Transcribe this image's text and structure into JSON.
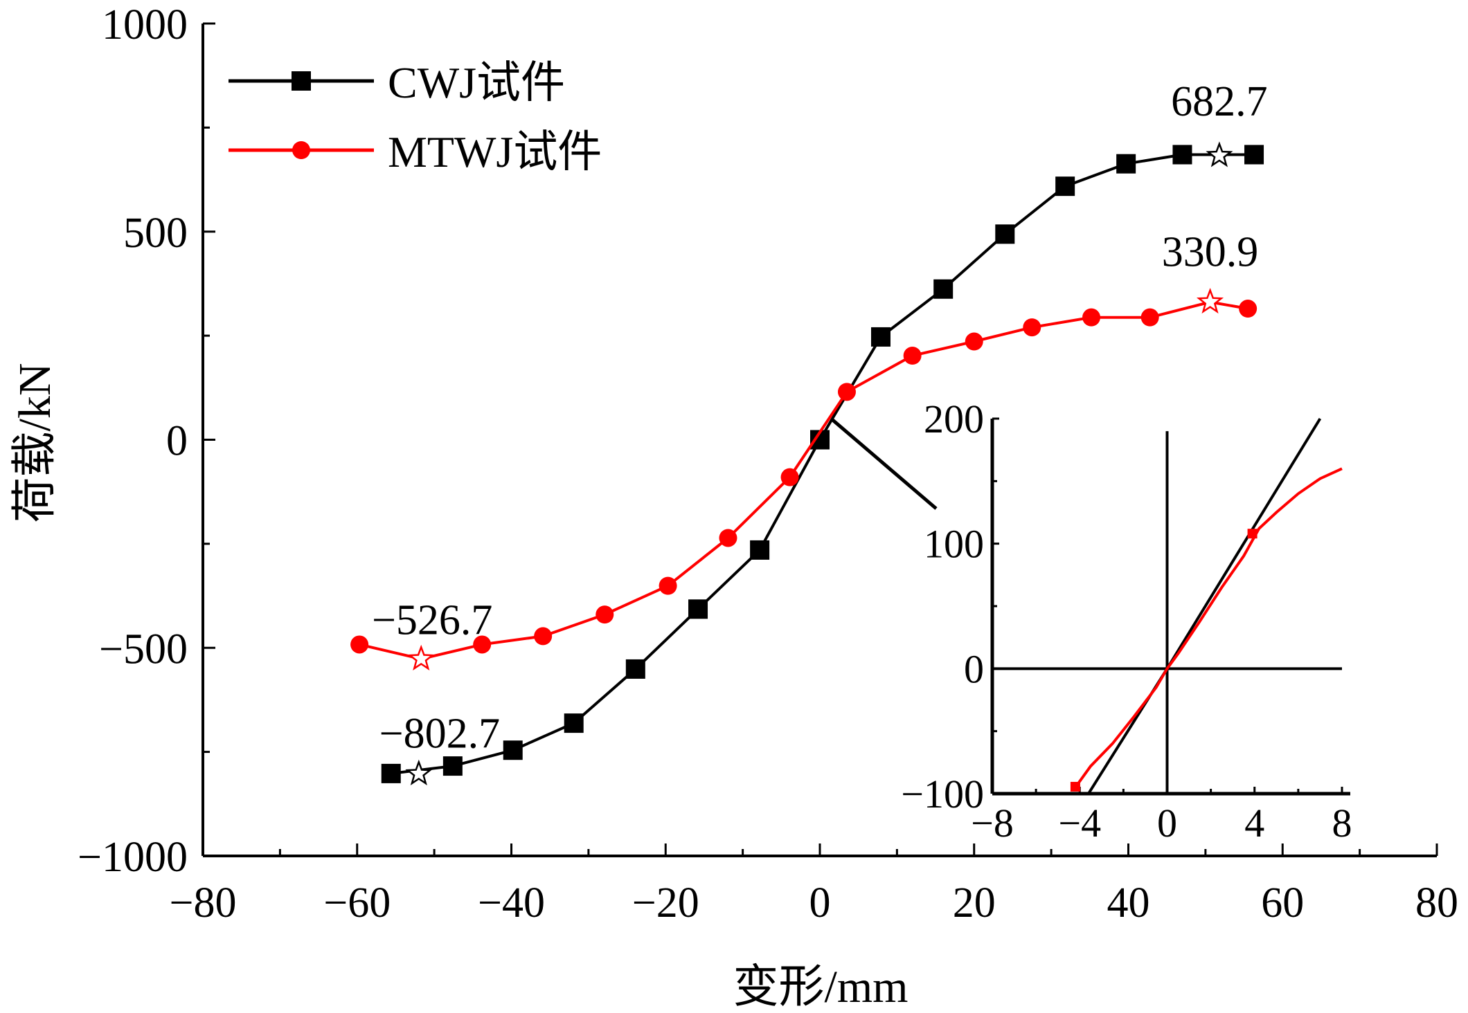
{
  "chart_data": {
    "type": "line",
    "title": "",
    "xlabel": "变形/mm",
    "ylabel": "荷载/kN",
    "xlim": [
      -80,
      80
    ],
    "ylim": [
      -1000,
      1000
    ],
    "x_ticks": [
      -80,
      -60,
      -40,
      -20,
      0,
      20,
      40,
      60,
      80
    ],
    "y_ticks": [
      -1000,
      -500,
      0,
      500,
      1000
    ],
    "x_tick_labels": [
      "−80",
      "−60",
      "−40",
      "−20",
      "0",
      "20",
      "40",
      "60",
      "80"
    ],
    "y_tick_labels": [
      "−1000",
      "−500",
      "0",
      "500",
      "1000"
    ],
    "grid": false,
    "legend_position": "top-left",
    "series": [
      {
        "name": "CWJ试件",
        "color": "#000000",
        "marker": "square",
        "x": [
          -55.6,
          -47.6,
          -39.8,
          -31.9,
          -23.9,
          -15.8,
          -7.8,
          0,
          7.9,
          16.0,
          24.0,
          31.8,
          39.7,
          47.0,
          56.3
        ],
        "y": [
          -802,
          -784,
          -746,
          -681,
          -551,
          -407,
          -265,
          0,
          247,
          362,
          494,
          609,
          663,
          685,
          685
        ]
      },
      {
        "name": "MTWJ试件",
        "color": "#ff0000",
        "marker": "circle",
        "x": [
          -59.7,
          -51.7,
          -43.8,
          -35.9,
          -27.9,
          -19.7,
          -11.9,
          -3.9,
          3.5,
          12.0,
          20.0,
          27.5,
          35.2,
          42.8,
          50.6,
          55.5
        ],
        "y": [
          -492,
          -526.7,
          -492,
          -472,
          -420,
          -351,
          -236,
          -90,
          115,
          202,
          236,
          270,
          294,
          294,
          330.9,
          315
        ]
      }
    ],
    "peak_markers": [
      {
        "series": "CWJ试件",
        "x": 51.8,
        "y": 682.7,
        "label": "682.7"
      },
      {
        "series": "CWJ试件",
        "x": -52.0,
        "y": -802.7,
        "label": "−802.7"
      },
      {
        "series": "MTWJ试件",
        "x": 50.6,
        "y": 330.9,
        "label": "330.9"
      },
      {
        "series": "MTWJ试件",
        "x": -51.7,
        "y": -526.7,
        "label": "−526.7"
      }
    ],
    "inset": {
      "xlim": [
        -8,
        8
      ],
      "ylim": [
        -100,
        200
      ],
      "x_ticks": [
        -8,
        -4,
        0,
        4,
        8
      ],
      "y_ticks": [
        -100,
        0,
        100,
        200
      ],
      "x_tick_labels": [
        "−8",
        "−4",
        "0",
        "4",
        "8"
      ],
      "y_tick_labels": [
        "−100",
        "0",
        "100",
        "200"
      ],
      "series": [
        {
          "name": "CWJ试件",
          "color": "#000000",
          "x": [
            -3.6,
            0,
            7.0
          ],
          "y": [
            -100,
            0,
            200
          ]
        },
        {
          "name": "MTWJ试件",
          "color": "#ff0000",
          "x": [
            -4.2,
            -3.5,
            -2.5,
            -1.5,
            -0.5,
            0,
            0.5,
            1.5,
            2.5,
            3.5,
            4.2,
            5.0,
            6.0,
            7.0,
            8.0
          ],
          "y": [
            -95,
            -78,
            -60,
            -38,
            -15,
            0,
            12,
            38,
            65,
            90,
            112,
            125,
            140,
            152,
            160
          ]
        }
      ]
    }
  }
}
